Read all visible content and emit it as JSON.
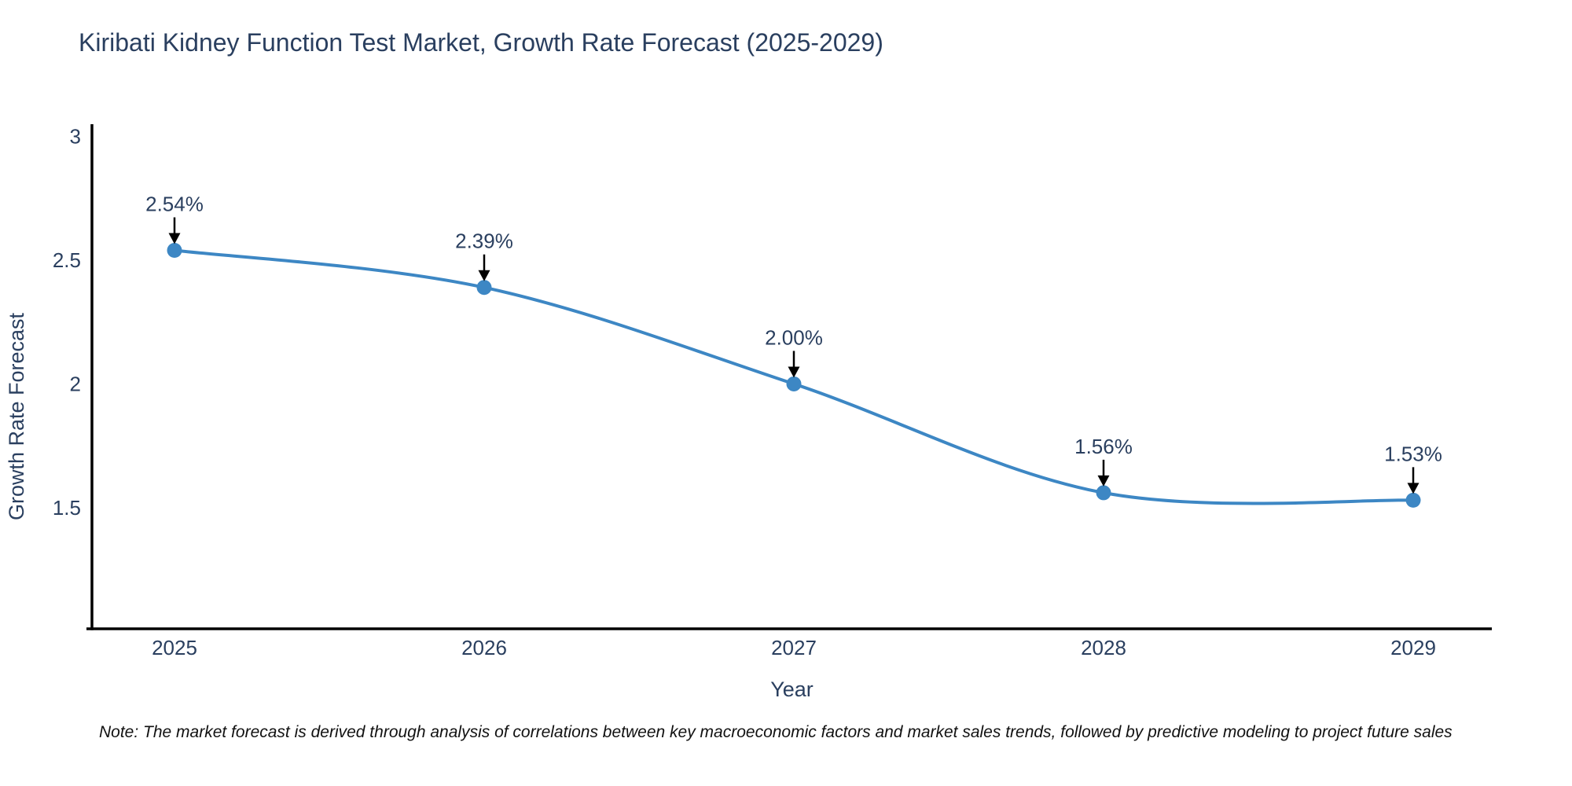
{
  "chart_data": {
    "type": "line",
    "title": "Kiribati Kidney Function Test Market, Growth Rate Forecast (2025-2029)",
    "xlabel": "Year",
    "ylabel": "Growth Rate Forecast",
    "x": [
      2025,
      2026,
      2027,
      2028,
      2029
    ],
    "series": [
      {
        "name": "Growth Rate Forecast",
        "values": [
          2.54,
          2.39,
          2.0,
          1.56,
          1.53
        ]
      }
    ],
    "point_labels": [
      "2.54%",
      "2.39%",
      "2.00%",
      "1.56%",
      "1.53%"
    ],
    "yticks": [
      1.5,
      2,
      2.5,
      3
    ],
    "ytick_labels": [
      "1.5",
      "2",
      "2.5",
      "3"
    ],
    "ylim": [
      1.01,
      3.05
    ],
    "grid": false,
    "legend_position": "none",
    "line_shape": "spline",
    "line_color": "#3d87c4",
    "marker_color": "#3d87c4",
    "annotation_arrow_color": "#000000",
    "axis_line_color": "#000000",
    "text_color": "#2a3f5f"
  },
  "note": {
    "text": "Note: The market forecast is derived through analysis of correlations between key macroeconomic factors and market sales trends, followed by predictive modeling to project future sales"
  }
}
